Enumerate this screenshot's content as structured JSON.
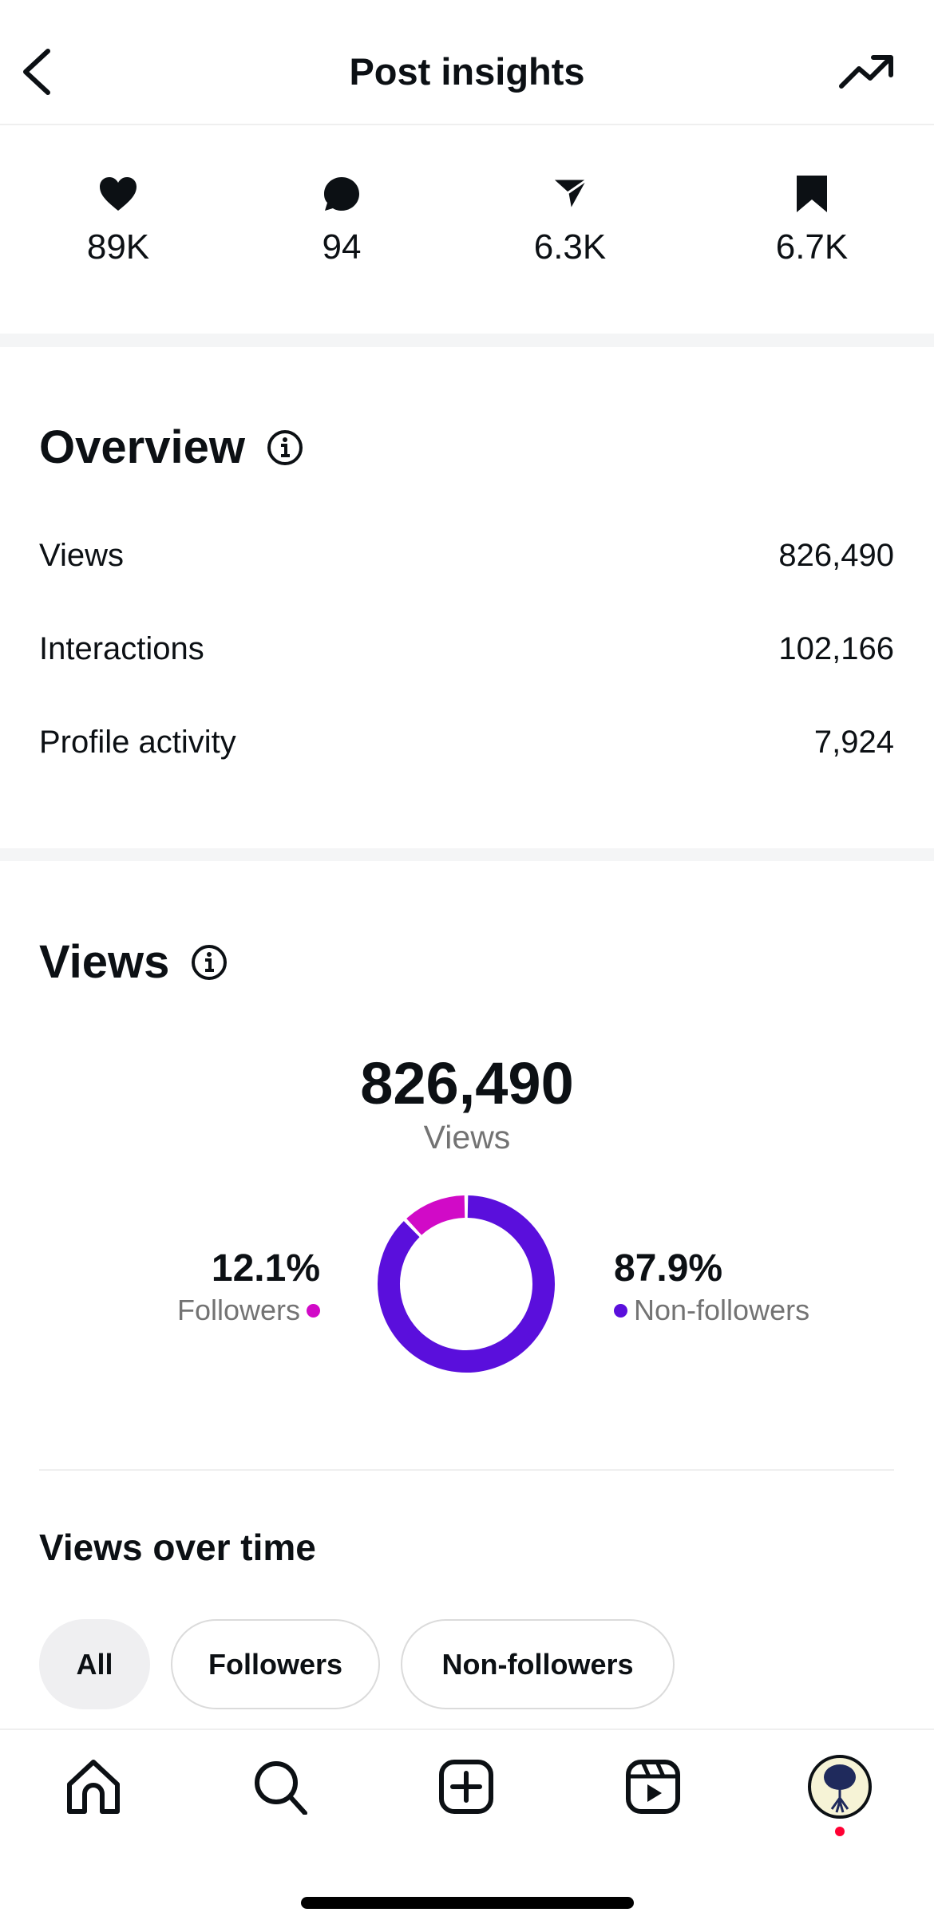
{
  "header": {
    "title": "Post insights"
  },
  "stats": [
    {
      "icon": "heart-icon",
      "value": "89K"
    },
    {
      "icon": "comment-icon",
      "value": "94"
    },
    {
      "icon": "share-icon",
      "value": "6.3K"
    },
    {
      "icon": "bookmark-icon",
      "value": "6.7K"
    }
  ],
  "overview": {
    "title": "Overview",
    "rows": [
      {
        "label": "Views",
        "value": "826,490"
      },
      {
        "label": "Interactions",
        "value": "102,166"
      },
      {
        "label": "Profile activity",
        "value": "7,924"
      }
    ]
  },
  "views": {
    "title": "Views",
    "total": "826,490",
    "total_label": "Views",
    "followers": {
      "pct": "12.1%",
      "label": "Followers",
      "color": "#d10ac7"
    },
    "nonfollowers": {
      "pct": "87.9%",
      "label": "Non-followers",
      "color": "#5a0fdc"
    }
  },
  "chart_data": {
    "type": "pie",
    "donut": true,
    "categories": [
      "Followers",
      "Non-followers"
    ],
    "values": [
      12.1,
      87.9
    ],
    "colors": [
      "#d10ac7",
      "#5a0fdc"
    ]
  },
  "views_over_time": {
    "title": "Views over time",
    "filters": [
      {
        "label": "All",
        "selected": true
      },
      {
        "label": "Followers",
        "selected": false
      },
      {
        "label": "Non-followers",
        "selected": false
      }
    ]
  },
  "nav": [
    "home-icon",
    "search-icon",
    "create-icon",
    "reels-icon",
    "profile-avatar"
  ]
}
